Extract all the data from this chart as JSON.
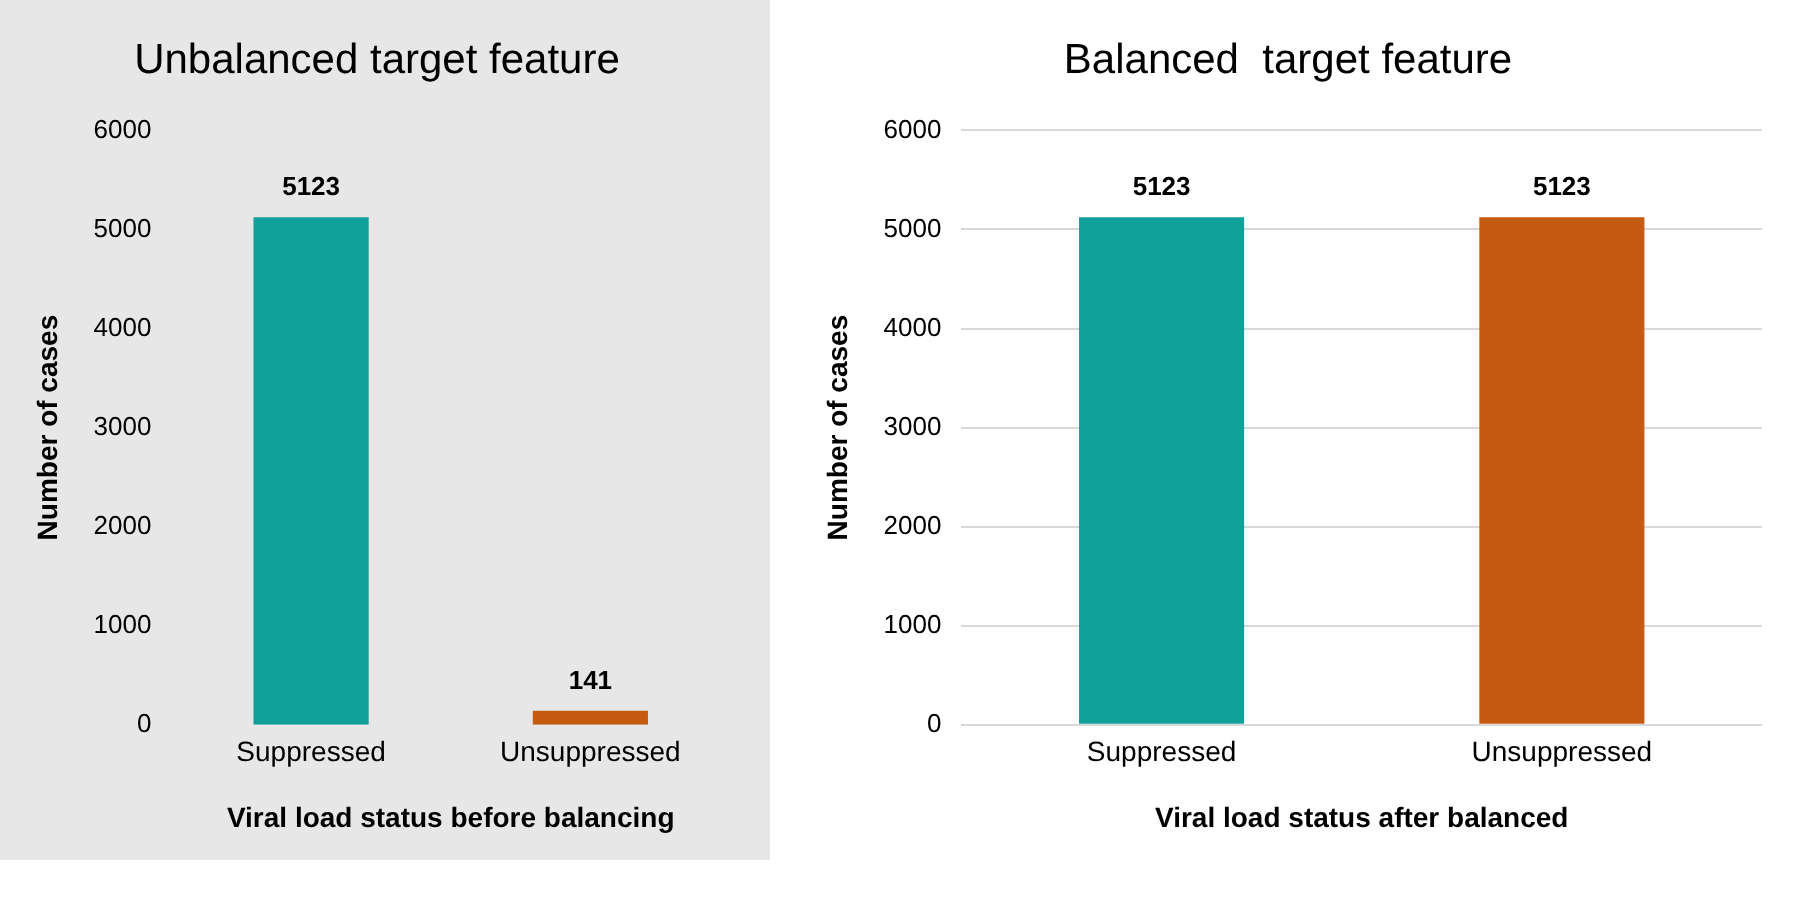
{
  "chart_data": [
    {
      "type": "bar",
      "title": "Unbalanced target feature",
      "xlabel": "Viral load status before balancing",
      "ylabel": "Number of cases",
      "categories": [
        "Suppressed",
        "Unsuppressed"
      ],
      "values": [
        5123,
        141
      ],
      "colors": [
        "#12a09a",
        "#c55a11"
      ],
      "ylim": [
        0,
        6000
      ],
      "yticks": [
        0,
        1000,
        2000,
        3000,
        4000,
        5000,
        6000
      ],
      "grid": false,
      "data_labels": true
    },
    {
      "type": "bar",
      "title": "Balanced  target feature",
      "xlabel": "Viral load status after balanced",
      "ylabel": "Number of cases",
      "categories": [
        "Suppressed",
        "Unsuppressed"
      ],
      "values": [
        5123,
        5123
      ],
      "colors": [
        "#12a09a",
        "#c55a11"
      ],
      "ylim": [
        0,
        6000
      ],
      "yticks": [
        0,
        1000,
        2000,
        3000,
        4000,
        5000,
        6000
      ],
      "grid": "y",
      "data_labels": true
    }
  ]
}
